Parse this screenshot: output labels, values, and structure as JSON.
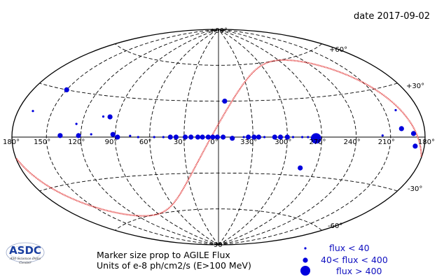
{
  "date_label": "date 2017-09-02",
  "logo": {
    "main": "ASDC",
    "sub1": "ASI Science Data",
    "sub2": "Center"
  },
  "note": {
    "line1": "Marker size prop to AGILE Flux",
    "line2": "Units of e-8 ph/cm2/s (E>100 MeV)"
  },
  "legend": [
    {
      "label": "flux < 40",
      "size": "small"
    },
    {
      "label": "40< flux < 400",
      "size": "medium"
    },
    {
      "label": "flux > 400",
      "size": "large"
    }
  ],
  "colors": {
    "marker": "#0000dd",
    "ecliptic": "#e03030",
    "grid": "#000000"
  },
  "chart_data": {
    "type": "scatter",
    "projection": "aitoff",
    "coordinate_system": "galactic",
    "lon_tick_labels": [
      "180°",
      "150°",
      "120°",
      "90°",
      "60°",
      "30°",
      "0°",
      "330°",
      "300°",
      "270°",
      "240°",
      "210°",
      "180°"
    ],
    "lat_tick_labels": [
      "+90°",
      "+60°",
      "+30°",
      "-30°",
      "-60°",
      "-90°"
    ],
    "series": [
      {
        "points": [
          {
            "l": 150,
            "b": 30,
            "flux": "medium"
          },
          {
            "l": 167,
            "b": 15,
            "flux": "small"
          },
          {
            "l": 125,
            "b": 9,
            "flux": "small"
          },
          {
            "l": 103,
            "b": 15,
            "flux": "small"
          },
          {
            "l": 97,
            "b": 15,
            "flux": "medium"
          },
          {
            "l": 138,
            "b": 1,
            "flux": "medium"
          },
          {
            "l": 122,
            "b": 1,
            "flux": "medium"
          },
          {
            "l": 111,
            "b": 2,
            "flux": "small"
          },
          {
            "l": 92,
            "b": 2,
            "flux": "medium"
          },
          {
            "l": 88,
            "b": 0,
            "flux": "medium"
          },
          {
            "l": 77,
            "b": 1,
            "flux": "small"
          },
          {
            "l": 70,
            "b": 0,
            "flux": "small"
          },
          {
            "l": 56,
            "b": 0,
            "flux": "small"
          },
          {
            "l": 48,
            "b": 0,
            "flux": "small"
          },
          {
            "l": 42,
            "b": 0,
            "flux": "medium"
          },
          {
            "l": 37,
            "b": 0,
            "flux": "medium"
          },
          {
            "l": 29,
            "b": 0,
            "flux": "medium"
          },
          {
            "l": 24,
            "b": 0,
            "flux": "medium"
          },
          {
            "l": 18,
            "b": 0,
            "flux": "medium"
          },
          {
            "l": 14,
            "b": 0,
            "flux": "medium"
          },
          {
            "l": 9,
            "b": 0,
            "flux": "medium"
          },
          {
            "l": 5,
            "b": 0,
            "flux": "medium"
          },
          {
            "l": 1,
            "b": 0,
            "flux": "medium"
          },
          {
            "l": -4,
            "b": 0,
            "flux": "medium"
          },
          {
            "l": -12,
            "b": -1,
            "flux": "medium"
          },
          {
            "l": -22,
            "b": 0,
            "flux": "small"
          },
          {
            "l": -26,
            "b": 0,
            "flux": "medium"
          },
          {
            "l": -31,
            "b": 0,
            "flux": "medium"
          },
          {
            "l": -35,
            "b": 0,
            "flux": "medium"
          },
          {
            "l": -40,
            "b": 0,
            "flux": "small"
          },
          {
            "l": -49,
            "b": 0,
            "flux": "medium"
          },
          {
            "l": -54,
            "b": 0,
            "flux": "medium"
          },
          {
            "l": -60,
            "b": 0,
            "flux": "medium"
          },
          {
            "l": -65,
            "b": 0,
            "flux": "small"
          },
          {
            "l": -73,
            "b": 0,
            "flux": "small"
          },
          {
            "l": -78,
            "b": 0,
            "flux": "small"
          },
          {
            "l": -85,
            "b": -1,
            "flux": "large"
          },
          {
            "l": -76,
            "b": -24,
            "flux": "medium"
          },
          {
            "l": -6,
            "b": 30,
            "flux": "medium"
          },
          {
            "l": -160,
            "b": 5,
            "flux": "medium"
          },
          {
            "l": -170,
            "b": 2,
            "flux": "medium"
          },
          {
            "l": -172,
            "b": -5,
            "flux": "medium"
          },
          {
            "l": -160,
            "b": 16,
            "flux": "small"
          },
          {
            "l": -143,
            "b": 1,
            "flux": "small"
          }
        ]
      }
    ]
  }
}
